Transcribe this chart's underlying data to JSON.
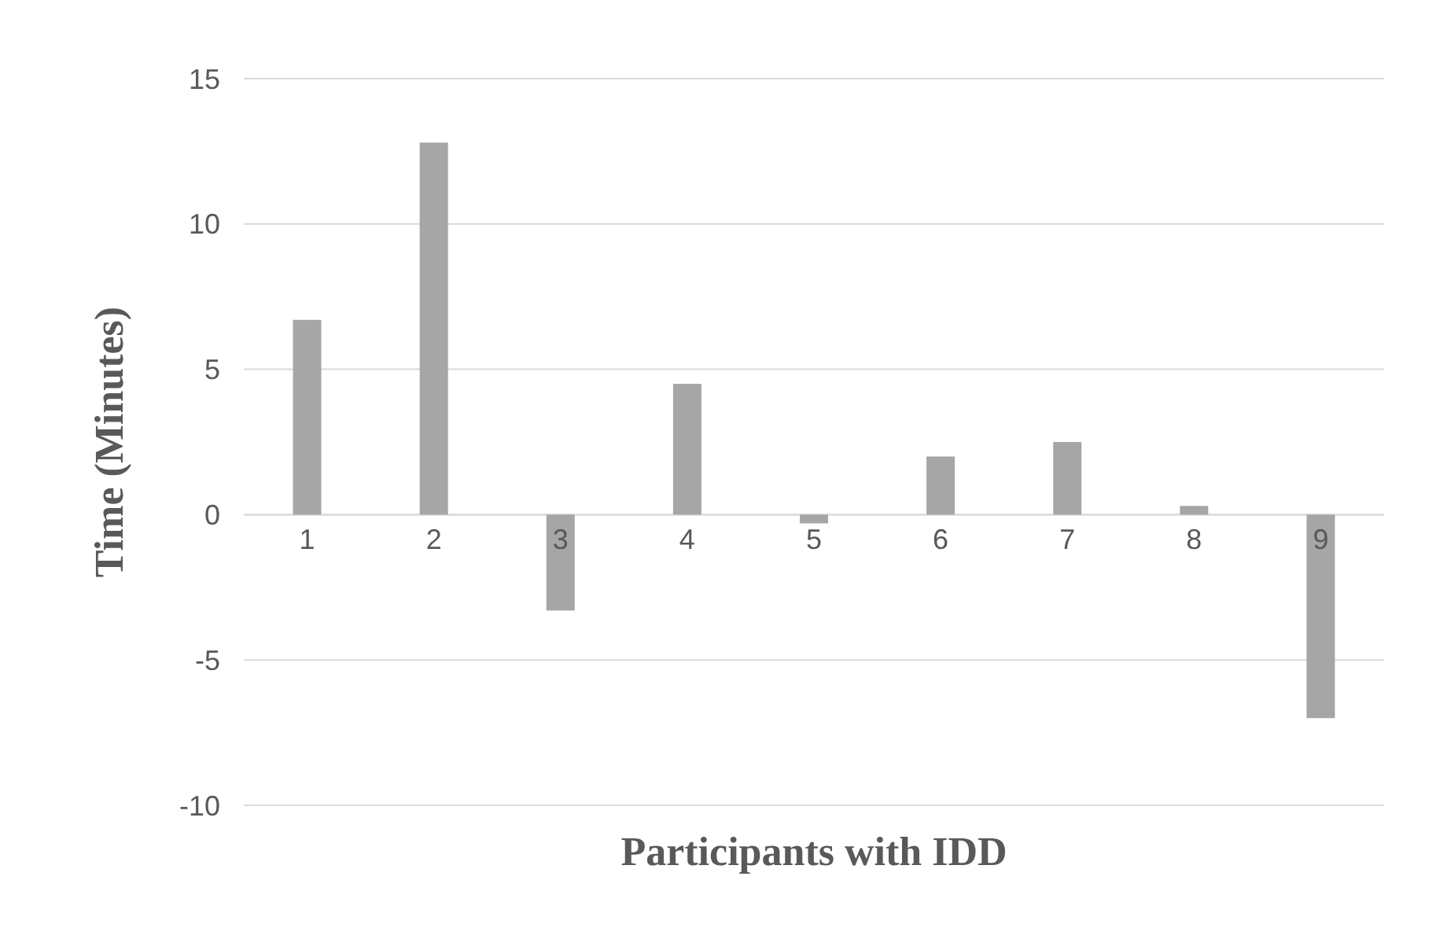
{
  "chart_data": {
    "type": "bar",
    "xlabel": "Participants with IDD",
    "ylabel": "Time (Minutes)",
    "categories": [
      "1",
      "2",
      "3",
      "4",
      "5",
      "6",
      "7",
      "8",
      "9"
    ],
    "values": [
      6.7,
      12.8,
      -3.3,
      4.5,
      -0.3,
      2.0,
      2.5,
      0.3,
      -7.0
    ],
    "color": "#a6a6a6",
    "ylim": [
      -10,
      15
    ],
    "yticks": [
      -10,
      -5,
      0,
      5,
      10,
      15
    ],
    "grid": "y"
  }
}
